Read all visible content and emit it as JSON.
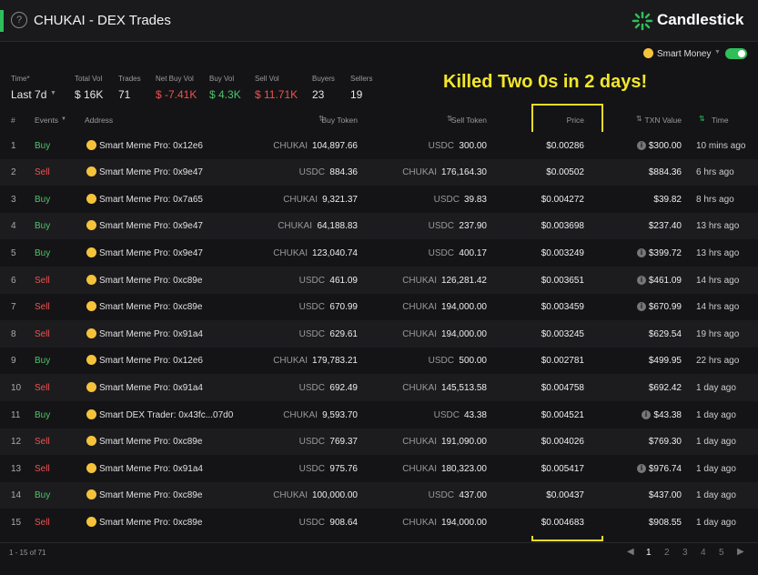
{
  "header": {
    "title": "CHUKAI - DEX Trades",
    "brand": "Candlestick"
  },
  "toolbar": {
    "smart_money": "Smart Money"
  },
  "stats": [
    {
      "label": "Time*",
      "value": "Last 7d",
      "color": "#e8e8e8"
    },
    {
      "label": "Total Vol",
      "value": "$ 16K",
      "color": "#e8e8e8"
    },
    {
      "label": "Trades",
      "value": "71",
      "color": "#e8e8e8"
    },
    {
      "label": "Net Buy Vol",
      "value": "$ -7.41K",
      "color": "#f0524f"
    },
    {
      "label": "Buy Vol",
      "value": "$ 4.3K",
      "color": "#4cc46a"
    },
    {
      "label": "Sell Vol",
      "value": "$ 11.71K",
      "color": "#f0524f"
    },
    {
      "label": "Buyers",
      "value": "23",
      "color": "#e8e8e8"
    },
    {
      "label": "Sellers",
      "value": "19",
      "color": "#e8e8e8"
    }
  ],
  "annotation": "Killed Two 0s in 2 days!",
  "table": {
    "columns": [
      "#",
      "Events",
      "Address",
      "Buy Token",
      "Sell Token",
      "Price",
      "TXN Value",
      "Time"
    ],
    "rows": [
      {
        "index": "1",
        "event": "Buy",
        "event_color": "#4cc46a",
        "address": "Smart Meme Pro: 0x12e6",
        "buy_token": "CHUKAI",
        "buy_amount": "104,897.66",
        "sell_token": "USDC",
        "sell_amount": "300.00",
        "price": "$0.00286",
        "value": "$300.00",
        "info": true,
        "time": "10 mins ago"
      },
      {
        "index": "2",
        "event": "Sell",
        "event_color": "#f0524f",
        "address": "Smart Meme Pro: 0x9e47",
        "buy_token": "USDC",
        "buy_amount": "884.36",
        "sell_token": "CHUKAI",
        "sell_amount": "176,164.30",
        "price": "$0.00502",
        "value": "$884.36",
        "info": false,
        "time": "6 hrs ago"
      },
      {
        "index": "3",
        "event": "Buy",
        "event_color": "#4cc46a",
        "address": "Smart Meme Pro: 0x7a65",
        "buy_token": "CHUKAI",
        "buy_amount": "9,321.37",
        "sell_token": "USDC",
        "sell_amount": "39.83",
        "price": "$0.004272",
        "value": "$39.82",
        "info": false,
        "time": "8 hrs ago"
      },
      {
        "index": "4",
        "event": "Buy",
        "event_color": "#4cc46a",
        "address": "Smart Meme Pro: 0x9e47",
        "buy_token": "CHUKAI",
        "buy_amount": "64,188.83",
        "sell_token": "USDC",
        "sell_amount": "237.90",
        "price": "$0.003698",
        "value": "$237.40",
        "info": false,
        "time": "13 hrs ago"
      },
      {
        "index": "5",
        "event": "Buy",
        "event_color": "#4cc46a",
        "address": "Smart Meme Pro: 0x9e47",
        "buy_token": "CHUKAI",
        "buy_amount": "123,040.74",
        "sell_token": "USDC",
        "sell_amount": "400.17",
        "price": "$0.003249",
        "value": "$399.72",
        "info": true,
        "time": "13 hrs ago"
      },
      {
        "index": "6",
        "event": "Sell",
        "event_color": "#f0524f",
        "address": "Smart Meme Pro: 0xc89e",
        "buy_token": "USDC",
        "buy_amount": "461.09",
        "sell_token": "CHUKAI",
        "sell_amount": "126,281.42",
        "price": "$0.003651",
        "value": "$461.09",
        "info": true,
        "time": "14 hrs ago"
      },
      {
        "index": "7",
        "event": "Sell",
        "event_color": "#f0524f",
        "address": "Smart Meme Pro: 0xc89e",
        "buy_token": "USDC",
        "buy_amount": "670.99",
        "sell_token": "CHUKAI",
        "sell_amount": "194,000.00",
        "price": "$0.003459",
        "value": "$670.99",
        "info": true,
        "time": "14 hrs ago"
      },
      {
        "index": "8",
        "event": "Sell",
        "event_color": "#f0524f",
        "address": "Smart Meme Pro: 0x91a4",
        "buy_token": "USDC",
        "buy_amount": "629.61",
        "sell_token": "CHUKAI",
        "sell_amount": "194,000.00",
        "price": "$0.003245",
        "value": "$629.54",
        "info": false,
        "time": "19 hrs ago"
      },
      {
        "index": "9",
        "event": "Buy",
        "event_color": "#4cc46a",
        "address": "Smart Meme Pro: 0x12e6",
        "buy_token": "CHUKAI",
        "buy_amount": "179,783.21",
        "sell_token": "USDC",
        "sell_amount": "500.00",
        "price": "$0.002781",
        "value": "$499.95",
        "info": false,
        "time": "22 hrs ago"
      },
      {
        "index": "10",
        "event": "Sell",
        "event_color": "#f0524f",
        "address": "Smart Meme Pro: 0x91a4",
        "buy_token": "USDC",
        "buy_amount": "692.49",
        "sell_token": "CHUKAI",
        "sell_amount": "145,513.58",
        "price": "$0.004758",
        "value": "$692.42",
        "info": false,
        "time": "1 day ago"
      },
      {
        "index": "11",
        "event": "Buy",
        "event_color": "#4cc46a",
        "address": "Smart DEX Trader: 0x43fc...07d0",
        "buy_token": "CHUKAI",
        "buy_amount": "9,593.70",
        "sell_token": "USDC",
        "sell_amount": "43.38",
        "price": "$0.004521",
        "value": "$43.38",
        "info": true,
        "time": "1 day ago"
      },
      {
        "index": "12",
        "event": "Sell",
        "event_color": "#f0524f",
        "address": "Smart Meme Pro: 0xc89e",
        "buy_token": "USDC",
        "buy_amount": "769.37",
        "sell_token": "CHUKAI",
        "sell_amount": "191,090.00",
        "price": "$0.004026",
        "value": "$769.30",
        "info": false,
        "time": "1 day ago"
      },
      {
        "index": "13",
        "event": "Sell",
        "event_color": "#f0524f",
        "address": "Smart Meme Pro: 0x91a4",
        "buy_token": "USDC",
        "buy_amount": "975.76",
        "sell_token": "CHUKAI",
        "sell_amount": "180,323.00",
        "price": "$0.005417",
        "value": "$976.74",
        "info": true,
        "time": "1 day ago"
      },
      {
        "index": "14",
        "event": "Buy",
        "event_color": "#4cc46a",
        "address": "Smart Meme Pro: 0xc89e",
        "buy_token": "CHUKAI",
        "buy_amount": "100,000.00",
        "sell_token": "USDC",
        "sell_amount": "437.00",
        "price": "$0.00437",
        "value": "$437.00",
        "info": false,
        "time": "1 day ago"
      },
      {
        "index": "15",
        "event": "Sell",
        "event_color": "#f0524f",
        "address": "Smart Meme Pro: 0xc89e",
        "buy_token": "USDC",
        "buy_amount": "908.64",
        "sell_token": "CHUKAI",
        "sell_amount": "194,000.00",
        "price": "$0.004683",
        "value": "$908.55",
        "info": false,
        "time": "1 day ago"
      }
    ]
  },
  "pagination": {
    "summary": "1 - 15 of 71",
    "pages": [
      "1",
      "2",
      "3",
      "4",
      "5"
    ]
  }
}
